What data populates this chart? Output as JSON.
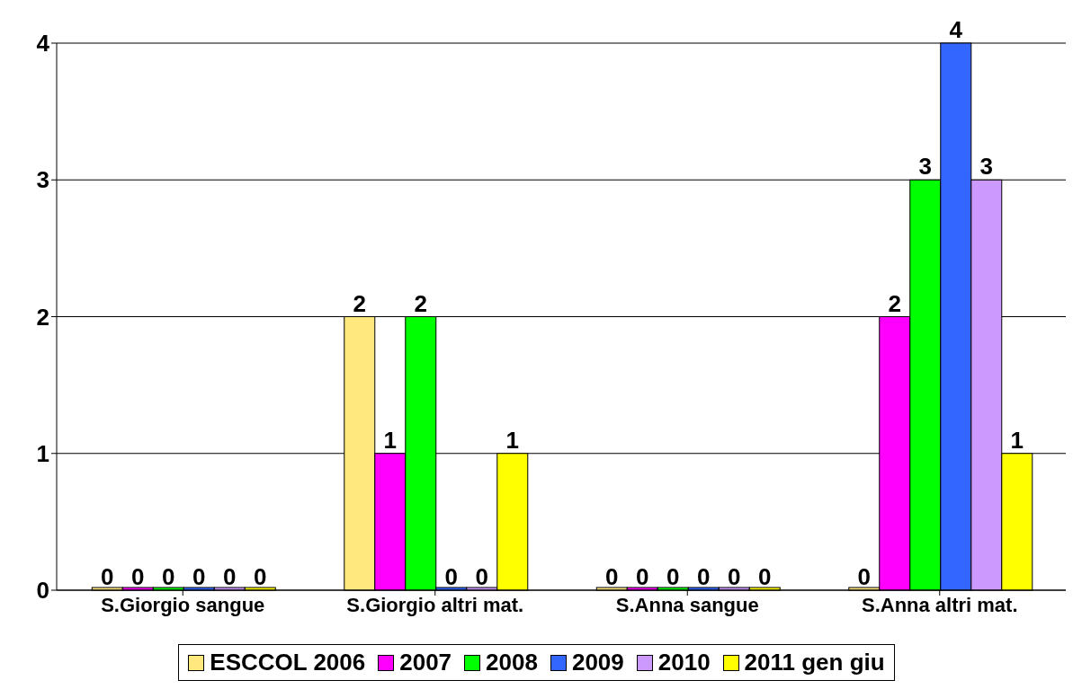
{
  "chart_data": {
    "type": "bar",
    "categories": [
      "S.Giorgio sangue",
      "S.Giorgio altri mat.",
      "S.Anna sangue",
      "S.Anna altri mat."
    ],
    "series": [
      {
        "name": "ESCCOL 2006",
        "color": "#ffe97f",
        "values": [
          0,
          2,
          0,
          0
        ]
      },
      {
        "name": "2007",
        "color": "#ff00ff",
        "values": [
          0,
          1,
          0,
          2
        ]
      },
      {
        "name": "2008",
        "color": "#00ff00",
        "values": [
          0,
          2,
          0,
          3
        ]
      },
      {
        "name": "2009",
        "color": "#3366ff",
        "values": [
          0,
          0,
          0,
          4
        ]
      },
      {
        "name": "2010",
        "color": "#cc99ff",
        "values": [
          0,
          0,
          0,
          3
        ]
      },
      {
        "name": "2011 gen giu",
        "color": "#ffff00",
        "values": [
          0,
          1,
          0,
          1
        ]
      }
    ],
    "ylim": [
      0,
      4
    ],
    "yticks": [
      0,
      1,
      2,
      3,
      4
    ],
    "grid": "y",
    "legend": "bottom",
    "data_labels": true
  }
}
